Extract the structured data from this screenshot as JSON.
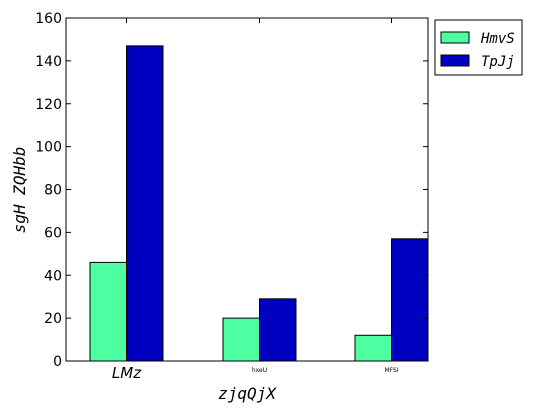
{
  "chart_data": {
    "type": "bar",
    "categories": [
      "LMz",
      "hxeU",
      "MFSI"
    ],
    "series": [
      {
        "name": "HmvS",
        "values": [
          46,
          20,
          12
        ],
        "color": "#4dffa0"
      },
      {
        "name": "TpJj",
        "values": [
          147,
          29,
          57
        ],
        "color": "#0000c0"
      }
    ],
    "xlabel": "zjqQjX",
    "ylabel": "sgH ZQHbb",
    "ylim": [
      0,
      160
    ],
    "yticks": [
      0,
      20,
      40,
      60,
      80,
      100,
      120,
      140,
      160
    ],
    "legend_position": "outside-top-right",
    "grid": false
  }
}
